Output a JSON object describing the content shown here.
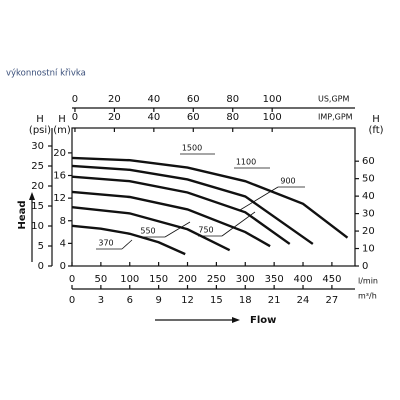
{
  "chart_data": {
    "type": "line",
    "title": "výkonnostní křivka",
    "ylabel": "Head",
    "xlabel": "Flow",
    "x_axes": [
      {
        "unit": "US,GPM",
        "xlim": [
          -1.5,
          142
        ],
        "xticks": [
          0,
          20,
          40,
          60,
          80,
          100
        ]
      },
      {
        "unit": "IMP,GPM",
        "xlim": [
          -1.5,
          142
        ],
        "xticks": [
          0,
          20,
          40,
          60,
          80,
          100
        ]
      },
      {
        "unit": "l/min",
        "xlim": [
          0,
          490
        ],
        "xticks": [
          0,
          50,
          100,
          150,
          200,
          250,
          300,
          350,
          400,
          450
        ]
      },
      {
        "unit": "m³/h",
        "xlim": [
          0,
          29.4
        ],
        "xticks": [
          0,
          3,
          6,
          9,
          12,
          15,
          18,
          21,
          24,
          27
        ]
      }
    ],
    "y_axes": [
      {
        "name": "H",
        "unit": "(psi)",
        "ylim": [
          0,
          34.5
        ],
        "yticks": [
          0,
          5,
          10,
          15,
          20,
          25,
          30
        ]
      },
      {
        "name": "H",
        "unit": "(m)",
        "ylim": [
          0,
          24.4
        ],
        "yticks": [
          0,
          4,
          8,
          12,
          16,
          20
        ]
      },
      {
        "name": "H",
        "unit": "(ft)",
        "ylim": [
          0,
          79
        ],
        "yticks": [
          0,
          10,
          20,
          30,
          40,
          50,
          60
        ]
      }
    ],
    "series": [
      {
        "name": "1500",
        "color": "#111111",
        "x": [
          0,
          100,
          200,
          300,
          400,
          477
        ],
        "values": [
          19.1,
          18.7,
          17.4,
          15.0,
          11.0,
          5.0
        ]
      },
      {
        "name": "1100",
        "color": "#111111",
        "x": [
          0,
          100,
          200,
          300,
          417
        ],
        "values": [
          17.7,
          17.0,
          15.3,
          12.3,
          3.9
        ]
      },
      {
        "name": "900",
        "color": "#111111",
        "x": [
          0,
          100,
          200,
          300,
          377
        ],
        "values": [
          15.8,
          15.0,
          13.0,
          9.5,
          3.9
        ]
      },
      {
        "name": "750",
        "color": "#111111",
        "x": [
          0,
          100,
          200,
          300,
          343
        ],
        "values": [
          13.1,
          12.2,
          10.0,
          6.0,
          3.5
        ]
      },
      {
        "name": "550",
        "color": "#111111",
        "x": [
          0,
          100,
          200,
          273
        ],
        "values": [
          10.4,
          9.3,
          6.5,
          2.8
        ]
      },
      {
        "name": "370",
        "color": "#111111",
        "x": [
          0,
          50,
          100,
          150,
          196
        ],
        "values": [
          7.1,
          6.6,
          5.7,
          4.2,
          2.1
        ]
      }
    ]
  }
}
